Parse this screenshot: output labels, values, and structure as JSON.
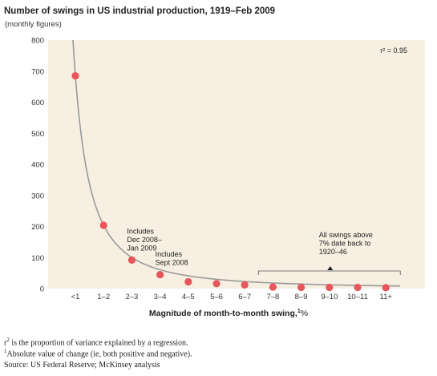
{
  "chart_data": {
    "type": "scatter",
    "title": "Number of swings in US industrial production, 1919–Feb 2009",
    "subtitle": "(monthly figures)",
    "xlabel": "Magnitude of month-to-month swing,",
    "xlabel_footnote_mark": "1",
    "xlabel_unit": "%",
    "ylim": [
      0,
      800
    ],
    "yticks": [
      "0",
      "100",
      "200",
      "300",
      "400",
      "500",
      "600",
      "700",
      "800"
    ],
    "categories": [
      "<1",
      "1–2",
      "2–3",
      "3–4",
      "4–5",
      "5–6",
      "6–7",
      "7–8",
      "8–9",
      "9–10",
      "10–11",
      "11+"
    ],
    "values": [
      685,
      204,
      92,
      45,
      22,
      16,
      12,
      5,
      4,
      4,
      4,
      3
    ],
    "point_color": "#e8555b",
    "plot_background": "#f7efe2",
    "fit_line_color": "#9a9a9a",
    "r2_label": "r² = 0.95",
    "annotations": [
      {
        "category": "2–3",
        "lines": [
          "Includes",
          "Dec 2008–",
          "Jan 2009"
        ]
      },
      {
        "category": "3–4",
        "lines": [
          "Includes",
          "Sept 2008"
        ]
      },
      {
        "bracket_from": "7–8",
        "bracket_to": "11+",
        "lines": [
          "All swings above",
          "7% date back to",
          "1920–46"
        ]
      }
    ]
  },
  "footnotes": {
    "r2_mark": "r",
    "r2_sup": "2",
    "r2_text": "is the proportion of variance explained by a regression.",
    "abs_mark": "1",
    "abs_text": "Absolute value of change (ie, both positive and negative).",
    "source": "Source: US Federal Reserve; McKinsey analysis"
  }
}
